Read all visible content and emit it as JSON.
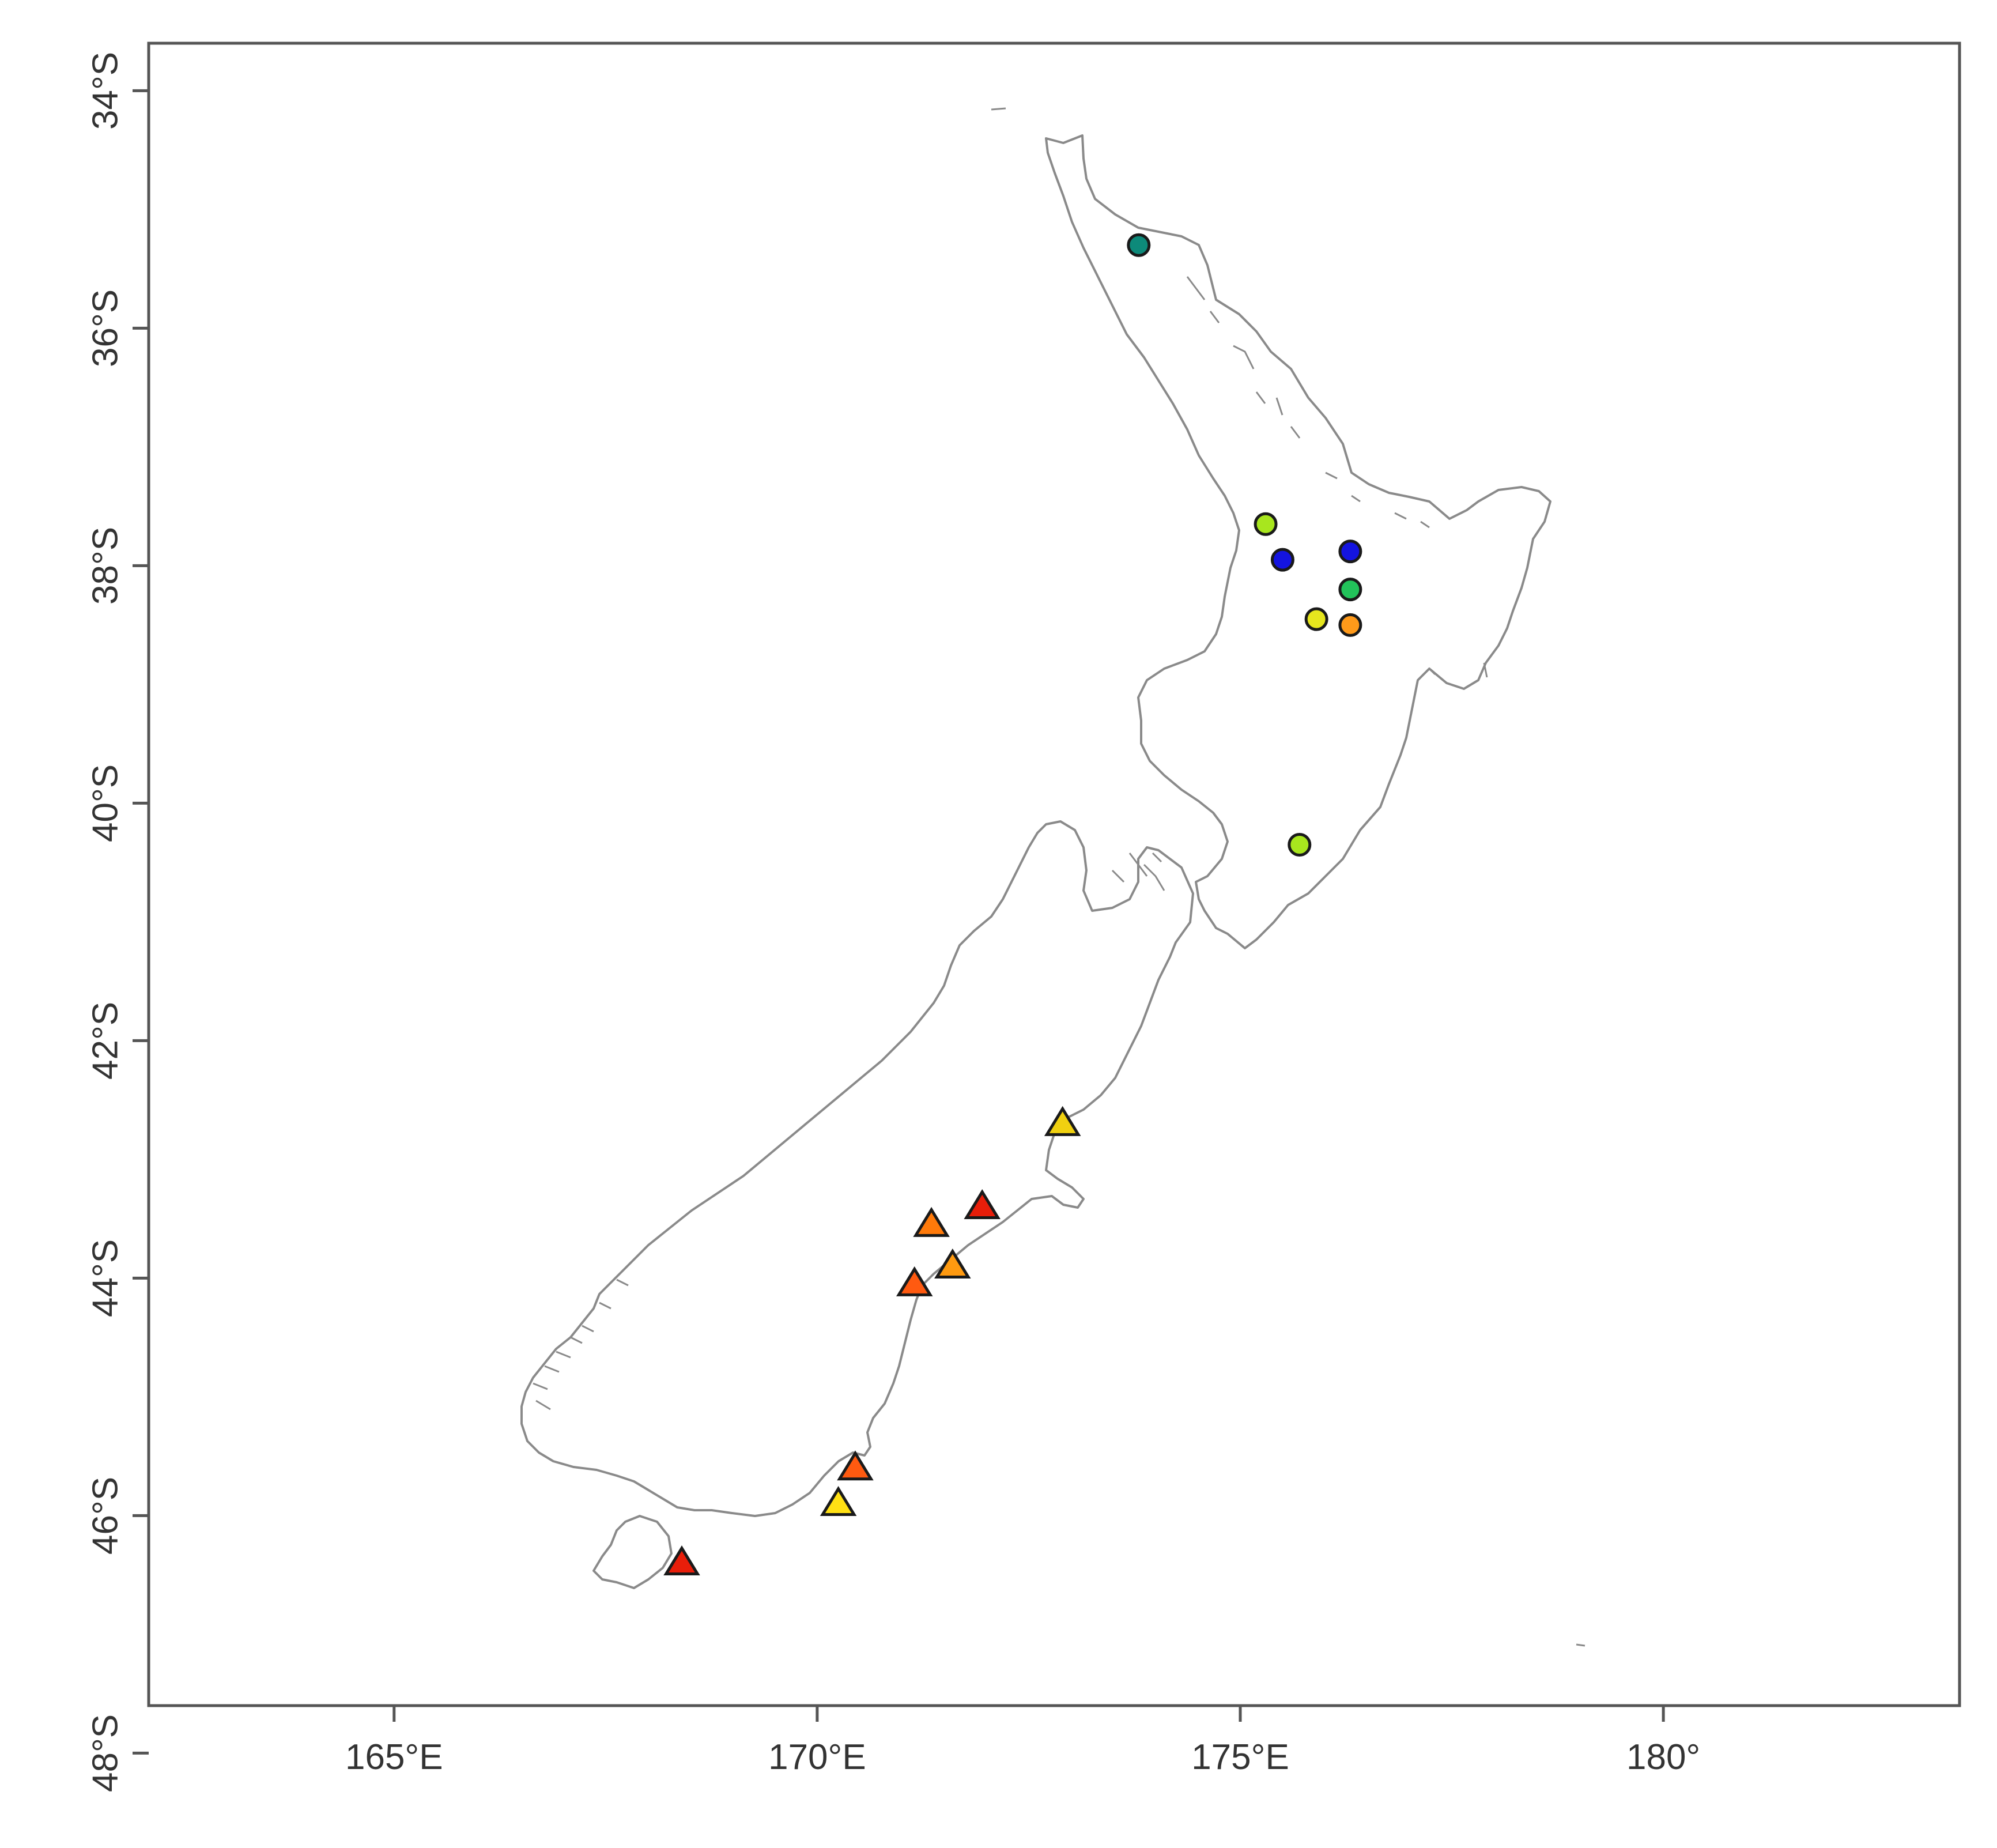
{
  "map": {
    "x_axis": {
      "ticks": [
        {
          "value": 165,
          "label": "165°E"
        },
        {
          "value": 170,
          "label": "170°E"
        },
        {
          "value": 175,
          "label": "175°E"
        },
        {
          "value": 180,
          "label": "180°"
        }
      ]
    },
    "y_axis": {
      "ticks": [
        {
          "value": -34,
          "label": "34°S"
        },
        {
          "value": -36,
          "label": "36°S"
        },
        {
          "value": -38,
          "label": "38°S"
        },
        {
          "value": -40,
          "label": "40°S"
        },
        {
          "value": -42,
          "label": "42°S"
        },
        {
          "value": -44,
          "label": "44°S"
        },
        {
          "value": -46,
          "label": "46°S"
        },
        {
          "value": -48,
          "label": "48°S"
        }
      ]
    },
    "xlim": [
      162.1,
      183.5
    ],
    "ylim": [
      -47.6,
      -33.6
    ],
    "coastline_color": "#8a8a8a"
  },
  "chart_data": {
    "type": "scatter",
    "title": "",
    "xlabel": "",
    "ylabel": "",
    "x_range": [
      162.1,
      183.5
    ],
    "y_range": [
      -47.6,
      -33.6
    ],
    "grid": false,
    "series": [
      {
        "marker": "circle",
        "points": [
          {
            "lon": 173.8,
            "lat": -35.3,
            "color": "#0d8a7a"
          },
          {
            "lon": 175.3,
            "lat": -37.65,
            "color": "#a8e61e"
          },
          {
            "lon": 175.5,
            "lat": -37.95,
            "color": "#1414e0"
          },
          {
            "lon": 176.3,
            "lat": -37.88,
            "color": "#1414e0"
          },
          {
            "lon": 176.3,
            "lat": -38.2,
            "color": "#22c25a"
          },
          {
            "lon": 175.9,
            "lat": -38.45,
            "color": "#e6e61e"
          },
          {
            "lon": 176.3,
            "lat": -38.5,
            "color": "#ff9a1a"
          },
          {
            "lon": 175.7,
            "lat": -40.35,
            "color": "#a8e61e"
          }
        ]
      },
      {
        "marker": "triangle",
        "points": [
          {
            "lon": 172.9,
            "lat": -42.7,
            "color": "#f0d010"
          },
          {
            "lon": 171.95,
            "lat": -43.4,
            "color": "#e81e0a"
          },
          {
            "lon": 171.35,
            "lat": -43.55,
            "color": "#ff7a0a"
          },
          {
            "lon": 171.6,
            "lat": -43.9,
            "color": "#ff9a10"
          },
          {
            "lon": 171.15,
            "lat": -44.05,
            "color": "#ff5a10"
          },
          {
            "lon": 170.45,
            "lat": -45.6,
            "color": "#ff5a10"
          },
          {
            "lon": 170.25,
            "lat": -45.9,
            "color": "#ffe014"
          },
          {
            "lon": 168.4,
            "lat": -46.4,
            "color": "#e81e0a"
          }
        ]
      }
    ]
  }
}
